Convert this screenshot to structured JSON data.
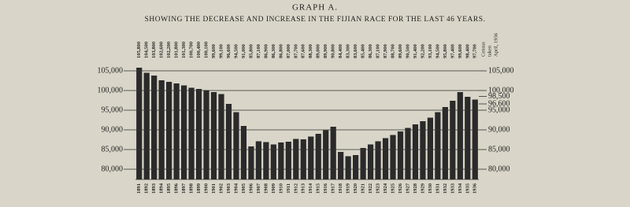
{
  "chart_data": {
    "type": "bar",
    "title": "GRAPH A.",
    "subtitle": "SHOWING THE DECREASE AND INCREASE IN THE FIJIAN RACE FOR THE LAST 46 YEARS.",
    "annotation": [
      "Census",
      "taken",
      "April, 1936"
    ],
    "categories": [
      "1891",
      "1892",
      "1893",
      "1894",
      "1895",
      "1896",
      "1897",
      "1898",
      "1899",
      "1900",
      "1901",
      "1902",
      "1903",
      "1904",
      "1905",
      "1906",
      "1907",
      "1908",
      "1909",
      "1910",
      "1911",
      "1912",
      "1913",
      "1914",
      "1915",
      "1916",
      "1917",
      "1918",
      "1919",
      "1920",
      "1921",
      "1922",
      "1923",
      "1924",
      "1925",
      "1926",
      "1927",
      "1928",
      "1929",
      "1930",
      "1931",
      "1932",
      "1933",
      "1934",
      "1935",
      "1936"
    ],
    "values": [
      105800,
      104500,
      103800,
      102600,
      102200,
      101800,
      101300,
      100700,
      100400,
      100100,
      99600,
      99100,
      96600,
      94500,
      91000,
      85800,
      87100,
      86900,
      86300,
      86800,
      87000,
      87700,
      87600,
      88300,
      89000,
      89900,
      90800,
      84400,
      83300,
      83600,
      85400,
      86300,
      87100,
      87900,
      88700,
      89600,
      90500,
      91400,
      92200,
      93100,
      94500,
      95800,
      97400,
      99600,
      98400,
      97700
    ],
    "value_labels": [
      "105,800",
      "104,500",
      "103,800",
      "102,600",
      "102,200",
      "101,800",
      "101,300",
      "100,700",
      "100,400",
      "100,100",
      "99,600",
      "99,100",
      "96,600",
      "94,500",
      "91,000",
      "85,800",
      "87,100",
      "86,900",
      "86,300",
      "86,800",
      "87,000",
      "87,700",
      "87,600",
      "88,300",
      "89,000",
      "89,900",
      "90,800",
      "84,400",
      "83,300",
      "83,600",
      "85,400",
      "86,300",
      "87,100",
      "87,900",
      "88,700",
      "89,600",
      "90,500",
      "91,400",
      "92,200",
      "93,100",
      "94,500",
      "95,800",
      "97,400",
      "99,600",
      "98,400",
      "97,700"
    ],
    "color": "#2a2a2a",
    "ylim": [
      77400,
      107000
    ],
    "yticks": [
      {
        "value": 80000,
        "label": "80,000"
      },
      {
        "value": 85000,
        "label": "85,000"
      },
      {
        "value": 90000,
        "label": "90,000"
      },
      {
        "value": 95000,
        "label": "95,000"
      },
      {
        "value": 100000,
        "label": "100,000"
      },
      {
        "value": 105000,
        "label": "105,000"
      }
    ],
    "y2lim": [
      77400,
      107000
    ],
    "y2ticks": [
      {
        "value": 80000,
        "label": "80,000"
      },
      {
        "value": 85000,
        "label": "85,000"
      },
      {
        "value": 90000,
        "label": "90,000"
      },
      {
        "value": 95000,
        "label": "95,000"
      },
      {
        "value": 96600,
        "label": "96,600"
      },
      {
        "value": 98500,
        "label": "98,500"
      },
      {
        "value": 100000,
        "label": "100,000"
      },
      {
        "value": 105000,
        "label": "105,000"
      }
    ],
    "grid": true
  }
}
